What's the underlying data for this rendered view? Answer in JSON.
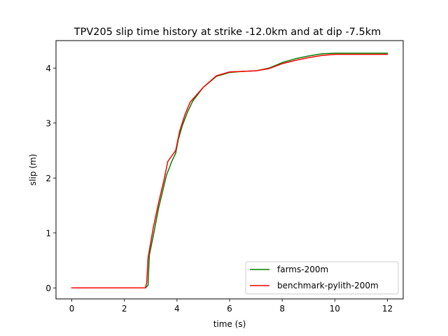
{
  "chart_data": {
    "type": "line",
    "title": "TPV205 slip time history at strike -12.0km and at dip -7.5km",
    "xlabel": "time (s)",
    "ylabel": "slip (m)",
    "xlim": [
      -0.6,
      12.6
    ],
    "ylim": [
      -0.2,
      4.5
    ],
    "xticks": [
      0,
      2,
      4,
      6,
      8,
      10,
      12
    ],
    "yticks": [
      0,
      1,
      2,
      3,
      4
    ],
    "grid": false,
    "legend_position": "lower-right",
    "series": [
      {
        "name": "farms-200m",
        "color": "#008000",
        "points": [
          [
            0,
            0
          ],
          [
            2.8,
            0
          ],
          [
            2.9,
            0.05
          ],
          [
            2.95,
            0.6
          ],
          [
            3.1,
            0.95
          ],
          [
            3.3,
            1.45
          ],
          [
            3.5,
            1.85
          ],
          [
            3.6,
            2.05
          ],
          [
            3.8,
            2.3
          ],
          [
            3.95,
            2.45
          ],
          [
            4.05,
            2.7
          ],
          [
            4.2,
            2.95
          ],
          [
            4.4,
            3.2
          ],
          [
            4.6,
            3.4
          ],
          [
            5.0,
            3.65
          ],
          [
            5.5,
            3.85
          ],
          [
            6.0,
            3.92
          ],
          [
            6.5,
            3.94
          ],
          [
            7.0,
            3.95
          ],
          [
            7.5,
            4.0
          ],
          [
            8.0,
            4.1
          ],
          [
            8.5,
            4.17
          ],
          [
            9.0,
            4.22
          ],
          [
            9.5,
            4.26
          ],
          [
            10.0,
            4.27
          ],
          [
            11.0,
            4.27
          ],
          [
            12.0,
            4.27
          ]
        ]
      },
      {
        "name": "benchmark-pylith-200m",
        "color": "#ff0000",
        "points": [
          [
            0,
            0
          ],
          [
            2.8,
            0
          ],
          [
            2.85,
            0.1
          ],
          [
            2.9,
            0.55
          ],
          [
            3.1,
            1.1
          ],
          [
            3.3,
            1.55
          ],
          [
            3.5,
            1.95
          ],
          [
            3.65,
            2.3
          ],
          [
            3.8,
            2.4
          ],
          [
            3.95,
            2.5
          ],
          [
            4.1,
            2.85
          ],
          [
            4.3,
            3.15
          ],
          [
            4.5,
            3.38
          ],
          [
            5.0,
            3.65
          ],
          [
            5.5,
            3.86
          ],
          [
            6.0,
            3.93
          ],
          [
            6.5,
            3.94
          ],
          [
            7.0,
            3.95
          ],
          [
            7.5,
            3.99
          ],
          [
            8.0,
            4.08
          ],
          [
            8.5,
            4.14
          ],
          [
            9.0,
            4.19
          ],
          [
            9.5,
            4.23
          ],
          [
            10.0,
            4.25
          ],
          [
            11.0,
            4.25
          ],
          [
            12.0,
            4.25
          ]
        ]
      }
    ]
  }
}
